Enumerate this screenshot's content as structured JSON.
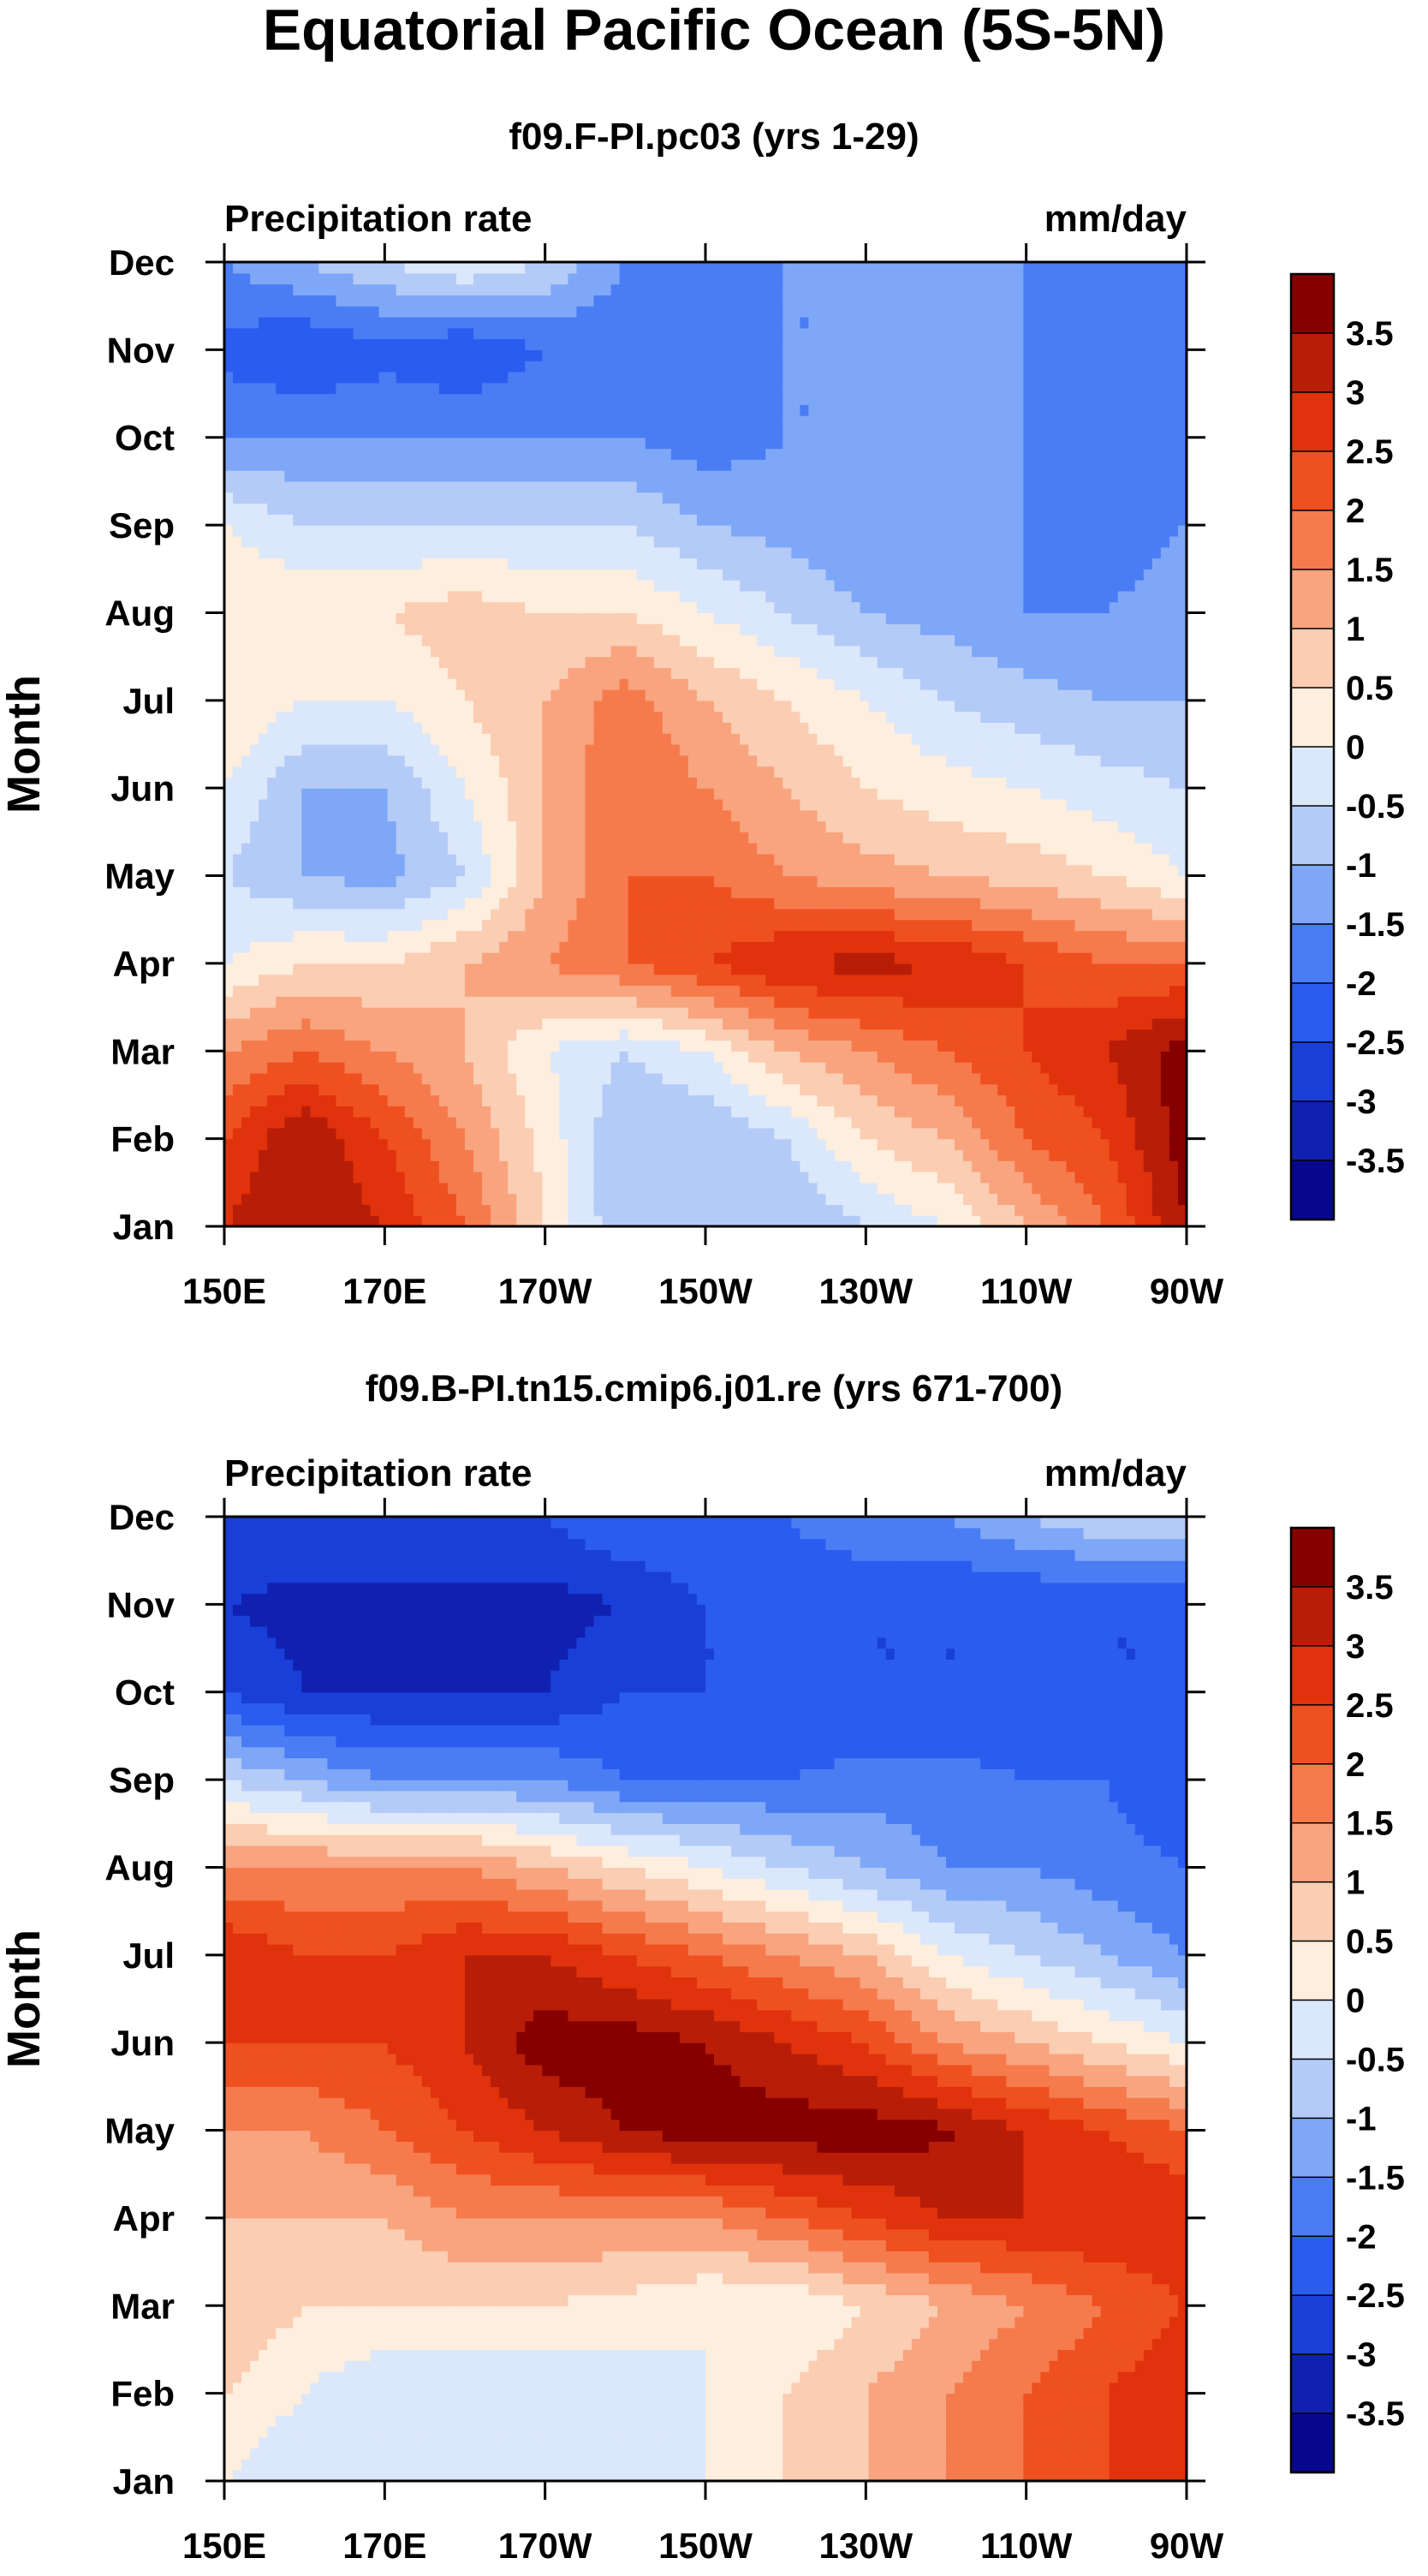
{
  "chart_data": {
    "type": "heatmap",
    "title": "Equatorial Pacific Ocean (5S-5N)",
    "variable": "Precipitation rate",
    "units": "mm/day",
    "ylabel": "Month",
    "x_ticks": [
      "150E",
      "170E",
      "170W",
      "150W",
      "130W",
      "110W",
      "90W"
    ],
    "x_lon": [
      150,
      170,
      190,
      210,
      230,
      250,
      270
    ],
    "months": [
      "Jan",
      "Feb",
      "Mar",
      "Apr",
      "May",
      "Jun",
      "Jul",
      "Aug",
      "Sep",
      "Oct",
      "Nov",
      "Dec"
    ],
    "contour_levels": [
      -3.5,
      -3,
      -2.5,
      -2,
      -1.5,
      -1,
      -0.5,
      0,
      0.5,
      1,
      1.5,
      2,
      2.5,
      3,
      3.5
    ],
    "colorbar_labels": [
      "3.5",
      "3",
      "2.5",
      "2",
      "1.5",
      "1",
      "0.5",
      "0",
      "-0.5",
      "-1",
      "-1.5",
      "-2",
      "-2.5",
      "-3",
      "-3.5"
    ],
    "colors": [
      "#08088c",
      "#1020b0",
      "#1a3fd8",
      "#2b5cf0",
      "#4a7cf4",
      "#7fa7f7",
      "#b4cbf8",
      "#dbe7fb",
      "#fdeede",
      "#fbcdb2",
      "#f8a47f",
      "#f57b4d",
      "#ef5020",
      "#e0320c",
      "#b81d08",
      "#860000"
    ],
    "panels": [
      {
        "title": "f09.F-PI.pc03 (yrs 1-29)",
        "grid": [
          [
            3.0,
            3.5,
            3.0,
            2.0,
            0.5,
            -1.0,
            -1.0,
            -1.0,
            -0.5,
            0.0,
            1.0,
            2.0,
            3.5
          ],
          [
            2.5,
            3.5,
            2.5,
            1.5,
            0.3,
            -1.0,
            -1.0,
            -0.5,
            0.5,
            1.0,
            2.0,
            2.5,
            3.8
          ],
          [
            1.5,
            2.0,
            1.5,
            1.0,
            0.0,
            -0.5,
            0.0,
            1.0,
            1.5,
            2.0,
            2.5,
            3.0,
            3.8
          ],
          [
            0.0,
            0.5,
            0.5,
            1.0,
            1.5,
            2.0,
            2.5,
            3.0,
            3.2,
            3.0,
            2.5,
            2.0,
            2.0
          ],
          [
            -0.5,
            -1.0,
            -1.2,
            -0.5,
            1.0,
            2.0,
            2.0,
            1.5,
            1.2,
            1.0,
            0.8,
            0.5,
            0.0
          ],
          [
            0.0,
            -1.0,
            -1.0,
            0.0,
            1.0,
            2.0,
            1.5,
            1.0,
            0.5,
            0.2,
            0.0,
            -0.3,
            -0.5
          ],
          [
            0.5,
            0.0,
            0.0,
            0.5,
            1.0,
            1.8,
            1.0,
            0.5,
            0.0,
            -0.5,
            -0.8,
            -1.0,
            -1.0
          ],
          [
            0.5,
            0.5,
            0.5,
            0.8,
            0.5,
            0.5,
            0.0,
            -0.5,
            -1.0,
            -1.2,
            -1.5,
            -1.5,
            -1.2
          ],
          [
            0.0,
            -0.5,
            -0.5,
            -0.5,
            -0.5,
            -0.5,
            -1.0,
            -1.2,
            -1.5,
            -1.5,
            -1.5,
            -1.8,
            -1.5
          ],
          [
            -1.5,
            -1.5,
            -1.5,
            -1.5,
            -1.5,
            -1.5,
            -1.8,
            -1.5,
            -1.5,
            -1.5,
            -1.5,
            -2.0,
            -2.0
          ],
          [
            -2.2,
            -2.5,
            -2.2,
            -2.5,
            -2.0,
            -2.0,
            -2.0,
            -1.5,
            -1.5,
            -1.5,
            -1.5,
            -2.0,
            -1.5
          ],
          [
            -1.5,
            -1.0,
            -0.5,
            0.0,
            -0.5,
            -1.5,
            -2.0,
            -1.5,
            -1.5,
            -1.5,
            -1.5,
            -1.5,
            -1.5
          ]
        ]
      },
      {
        "title": "f09.B-PI.tn15.cmip6.j01.re (yrs 671-700)",
        "grid": [
          [
            0.0,
            -0.5,
            -0.5,
            -0.5,
            -0.5,
            -0.5,
            0.0,
            0.5,
            1.0,
            1.5,
            2.0,
            2.5,
            3.0
          ],
          [
            0.5,
            0.0,
            -0.5,
            -0.5,
            -0.5,
            -0.3,
            0.0,
            0.5,
            1.0,
            1.5,
            2.0,
            2.5,
            3.0
          ],
          [
            1.0,
            0.5,
            0.5,
            0.5,
            0.5,
            0.3,
            0.0,
            0.0,
            0.5,
            1.0,
            1.5,
            2.0,
            2.5
          ],
          [
            1.0,
            1.0,
            1.0,
            1.5,
            1.5,
            1.5,
            1.5,
            2.0,
            2.5,
            3.0,
            3.0,
            3.0,
            3.0
          ],
          [
            1.5,
            1.5,
            2.0,
            2.5,
            3.0,
            3.5,
            3.8,
            3.8,
            3.8,
            3.6,
            3.0,
            2.5,
            2.0
          ],
          [
            2.5,
            2.5,
            2.5,
            3.0,
            3.8,
            3.8,
            3.5,
            3.0,
            2.5,
            1.5,
            1.0,
            0.5,
            0.0
          ],
          [
            3.0,
            2.5,
            2.5,
            3.0,
            3.0,
            2.5,
            2.0,
            1.5,
            1.0,
            0.0,
            -0.5,
            -1.0,
            -1.5
          ],
          [
            1.5,
            1.5,
            1.5,
            1.5,
            1.0,
            0.5,
            0.0,
            -0.5,
            -1.0,
            -1.5,
            -1.5,
            -1.8,
            -2.0
          ],
          [
            -0.5,
            -1.0,
            -1.5,
            -1.5,
            -1.5,
            -2.0,
            -2.0,
            -2.0,
            -1.8,
            -1.8,
            -2.0,
            -2.0,
            -2.5
          ],
          [
            -2.5,
            -3.0,
            -3.0,
            -3.0,
            -3.0,
            -2.5,
            -2.5,
            -2.5,
            -2.5,
            -2.5,
            -2.5,
            -2.5,
            -2.5
          ],
          [
            -3.0,
            -3.2,
            -3.2,
            -3.2,
            -3.2,
            -3.0,
            -2.5,
            -2.5,
            -2.5,
            -2.5,
            -2.5,
            -2.5,
            -2.5
          ],
          [
            -2.5,
            -2.5,
            -2.5,
            -2.5,
            -2.5,
            -2.0,
            -2.0,
            -2.0,
            -1.5,
            -1.5,
            -1.0,
            -0.5,
            -0.5
          ]
        ]
      }
    ]
  }
}
